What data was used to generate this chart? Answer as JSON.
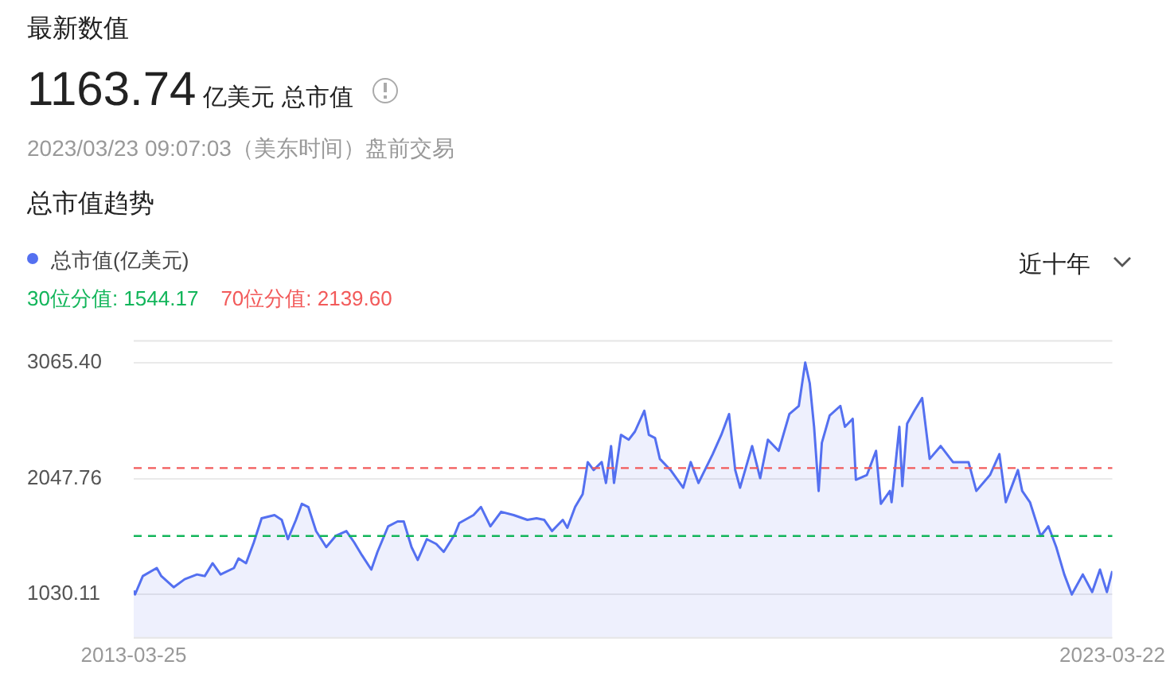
{
  "chart_data": {
    "type": "area",
    "title": "总市值趋势",
    "annotations": [
      "最新数值",
      "1163.74",
      "亿美元 总市值",
      "2023/03/23 09:07:03（美东时间）盘前交易",
      "近十年"
    ],
    "x": [
      "2013-03-25",
      "2013-03-30",
      "2013-04-28",
      "2013-06-19",
      "2013-07-06",
      "2013-08-21",
      "2013-10-01",
      "2013-11-16",
      "2013-12-15",
      "2014-01-13",
      "2014-02-12",
      "2014-04-03",
      "2014-04-20",
      "2014-05-18",
      "2014-06-16",
      "2014-07-15",
      "2014-09-01",
      "2014-09-28",
      "2014-10-21",
      "2014-11-20",
      "2014-12-12",
      "2015-01-05",
      "2015-02-03",
      "2015-03-13",
      "2015-04-17",
      "2015-05-27",
      "2015-06-25",
      "2015-07-24",
      "2015-08-28",
      "2015-09-20",
      "2015-10-30",
      "2015-12-04",
      "2015-12-27",
      "2016-01-25",
      "2016-02-17",
      "2016-03-22",
      "2016-04-26",
      "2016-05-24",
      "2016-07-04",
      "2016-07-21",
      "2016-09-12",
      "2016-10-10",
      "2016-11-14",
      "2016-12-24",
      "2017-02-09",
      "2017-04-01",
      "2017-05-05",
      "2017-06-03",
      "2017-07-02",
      "2017-08-11",
      "2017-08-28",
      "2017-09-26",
      "2017-10-24",
      "2017-11-12",
      "2017-12-04",
      "2018-01-03",
      "2018-01-19",
      "2018-02-07",
      "2018-02-18",
      "2018-03-16",
      "2018-04-14",
      "2018-05-07",
      "2018-06-11",
      "2018-06-28",
      "2018-07-21",
      "2018-08-08",
      "2018-09-17",
      "2018-11-03",
      "2018-12-01",
      "2018-12-30",
      "2019-02-21",
      "2019-03-25",
      "2019-04-23",
      "2019-05-16",
      "2019-06-03",
      "2019-07-18",
      "2019-08-17",
      "2019-09-15",
      "2019-10-25",
      "2019-12-04",
      "2020-01-08",
      "2020-02-01",
      "2020-02-18",
      "2020-03-05",
      "2020-03-22",
      "2020-04-03",
      "2020-05-02",
      "2020-06-11",
      "2020-06-28",
      "2020-07-27",
      "2020-08-08",
      "2020-09-18",
      "2020-10-22",
      "2020-11-09",
      "2020-12-13",
      "2020-12-19",
      "2021-01-17",
      "2021-01-28",
      "2021-02-15",
      "2021-03-14",
      "2021-04-12",
      "2021-05-10",
      "2021-06-20",
      "2021-08-05",
      "2021-10-02",
      "2021-10-31",
      "2021-12-21",
      "2022-01-25",
      "2022-02-18",
      "2022-04-04",
      "2022-04-20",
      "2022-05-19",
      "2022-06-28",
      "2022-07-27",
      "2022-08-25",
      "2022-09-24",
      "2022-10-22",
      "2022-12-02",
      "2023-01-06",
      "2023-02-04",
      "2023-03-02",
      "2023-03-22"
    ],
    "series": [
      {
        "name": "总市值(亿美元)",
        "color": "#5470f0",
        "values": [
          1065,
          1031,
          1192,
          1263,
          1192,
          1094,
          1164,
          1206,
          1192,
          1305,
          1206,
          1263,
          1347,
          1305,
          1488,
          1699,
          1727,
          1685,
          1516,
          1685,
          1826,
          1798,
          1587,
          1446,
          1544,
          1587,
          1488,
          1375,
          1249,
          1404,
          1629,
          1671,
          1671,
          1446,
          1333,
          1516,
          1474,
          1404,
          1558,
          1657,
          1727,
          1798,
          1629,
          1756,
          1727,
          1685,
          1699,
          1685,
          1587,
          1685,
          1615,
          1798,
          1910,
          2192,
          2122,
          2192,
          2009,
          2333,
          2009,
          2431,
          2389,
          2460,
          2643,
          2431,
          2403,
          2220,
          2122,
          1967,
          2192,
          2009,
          2262,
          2431,
          2614,
          2122,
          1967,
          2333,
          2051,
          2389,
          2291,
          2614,
          2685,
          3065.4,
          2882,
          2502,
          1939,
          2361,
          2600,
          2685,
          2502,
          2572,
          2037,
          2079,
          2291,
          1826,
          1939,
          1840,
          2502,
          1981,
          2530,
          2643,
          2755,
          2220,
          2333,
          2192,
          2192,
          1939,
          2079,
          2262,
          1840,
          2122,
          1939,
          1840,
          1544,
          1629,
          1446,
          1206,
          1030.11,
          1206,
          1052,
          1249,
          1052,
          1235
        ]
      }
    ],
    "ylim": [
      643,
      3262
    ],
    "yticks": [
      1030.11,
      2047.76,
      {
        "value": 3065.4,
        "label": "3065.40"
      }
    ],
    "xlim": [
      "2013-03-25",
      "2023-03-22"
    ],
    "xticks": [
      "2013-03-25",
      "2023-03-22"
    ],
    "ref_lines": [
      {
        "axis": "y",
        "value": 1544.17,
        "label": "30位分值: 1544.17",
        "color": "#12b55a",
        "line_style": "dashed"
      },
      {
        "axis": "y",
        "value": 2139.6,
        "label": "70位分值: 2139.60",
        "color": "#f25a5a",
        "line_style": "dashed"
      }
    ],
    "grid": "y",
    "legend": "top left",
    "marker": "none",
    "line_style": "solid"
  }
}
